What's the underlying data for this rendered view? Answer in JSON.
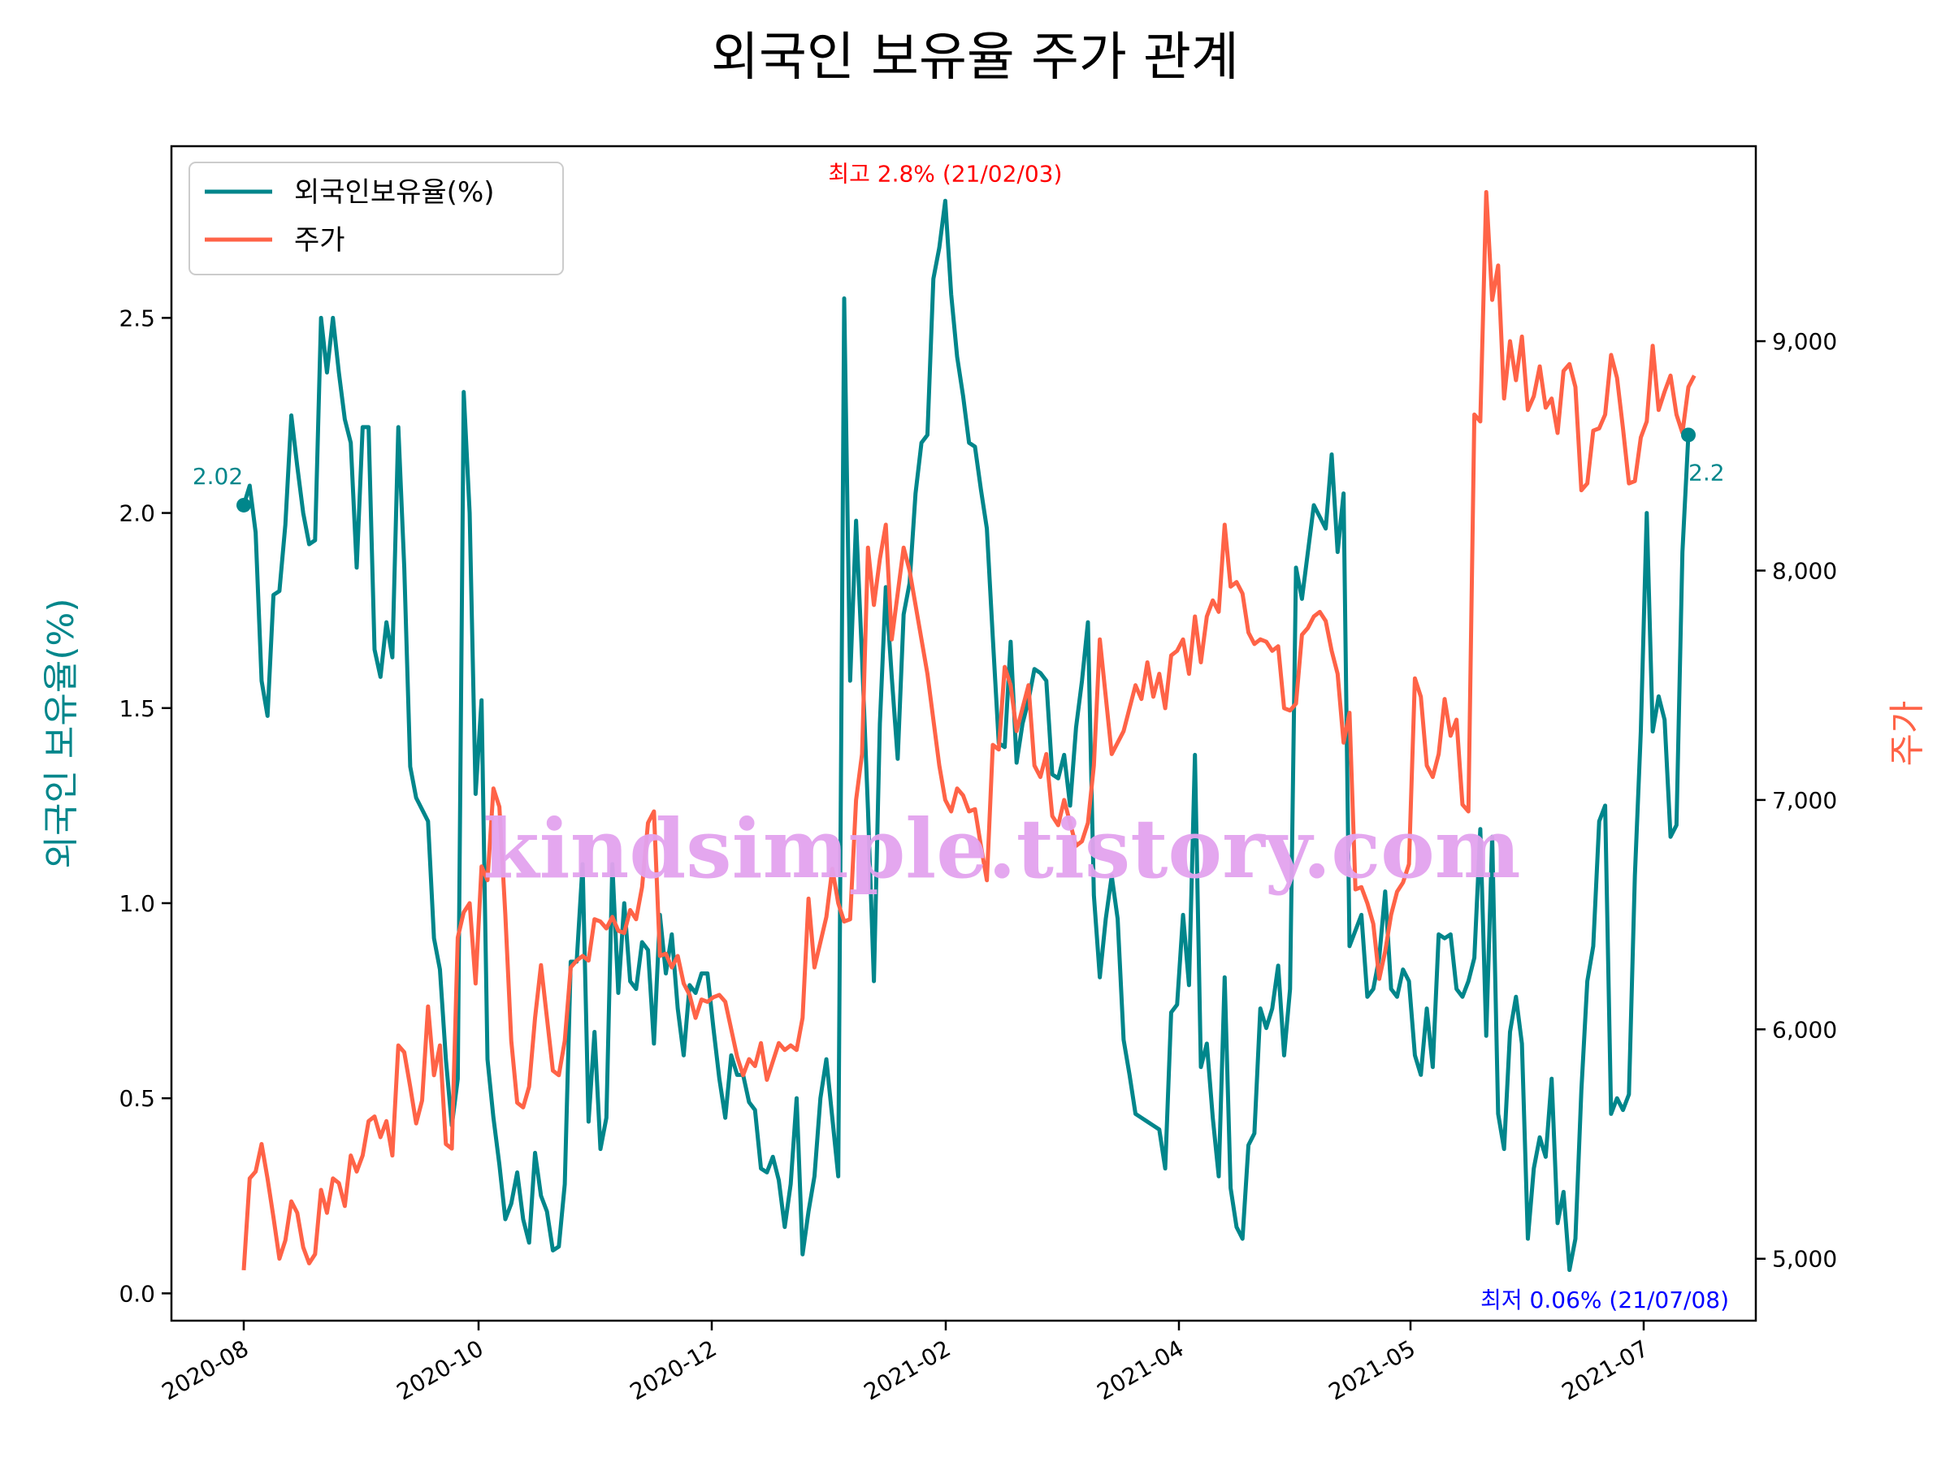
{
  "chart_data": {
    "type": "line",
    "title": "외국인 보유율 주가 관계",
    "ylabel_left": "외국인 보유율(%)",
    "ylabel_right": "주가",
    "watermark": "kindsimple.tistory.com",
    "colors": {
      "foreign": "#00868b",
      "price": "#ff6347",
      "max": "#ff0000",
      "min": "#0000ff"
    },
    "x_ticks": [
      "2020-08",
      "2020-10",
      "2020-12",
      "2021-02",
      "2021-04",
      "2021-05",
      "2021-07"
    ],
    "y_left_ticks": [
      "0.0",
      "0.5",
      "1.0",
      "1.5",
      "2.0",
      "2.5"
    ],
    "y_right_ticks": [
      "5,000",
      "6,000",
      "7,000",
      "8,000",
      "9,000"
    ],
    "y_left_lim": [
      -0.07,
      2.94
    ],
    "y_right_lim": [
      4730,
      9850
    ],
    "legend": {
      "position": "upper-left",
      "entries": [
        "외국인보유율(%)",
        "주가"
      ]
    },
    "annotations": {
      "max_label": "최고 2.8% (21/02/03)",
      "min_label": "최저 0.06% (21/07/08)",
      "start_label": "2.02",
      "end_label": "2.2"
    },
    "series": [
      {
        "name": "외국인보유율(%)",
        "axis": "left",
        "values": [
          2.02,
          2.07,
          1.95,
          1.57,
          1.48,
          1.79,
          1.8,
          1.97,
          2.25,
          2.12,
          2.0,
          1.92,
          1.93,
          2.5,
          2.36,
          2.5,
          2.36,
          2.24,
          2.18,
          1.86,
          2.22,
          2.22,
          1.65,
          1.58,
          1.72,
          1.63,
          2.22,
          1.86,
          1.35,
          1.27,
          1.24,
          1.21,
          0.91,
          0.83,
          0.6,
          0.43,
          0.55,
          2.31,
          2.0,
          1.28,
          1.52,
          0.6,
          0.45,
          0.33,
          0.19,
          0.23,
          0.31,
          0.19,
          0.13,
          0.36,
          0.25,
          0.21,
          0.11,
          0.12,
          0.28,
          0.85,
          0.85,
          1.1,
          0.44,
          0.67,
          0.37,
          0.45,
          1.1,
          0.77,
          1.0,
          0.8,
          0.78,
          0.9,
          0.88,
          0.64,
          0.97,
          0.82,
          0.92,
          0.73,
          0.61,
          0.79,
          0.77,
          0.82,
          0.82,
          0.68,
          0.55,
          0.45,
          0.61,
          0.56,
          0.56,
          0.49,
          0.47,
          0.32,
          0.31,
          0.35,
          0.29,
          0.17,
          0.28,
          0.5,
          0.1,
          0.21,
          0.3,
          0.5,
          0.6,
          0.45,
          0.3,
          2.55,
          1.57,
          1.98,
          1.63,
          1.24,
          0.8,
          1.46,
          1.81,
          1.58,
          1.37,
          1.74,
          1.82,
          2.05,
          2.18,
          2.2,
          2.6,
          2.68,
          2.8,
          2.56,
          2.4,
          2.3,
          2.18,
          2.17,
          2.06,
          1.96,
          1.68,
          1.41,
          1.4,
          1.67,
          1.36,
          1.46,
          1.52,
          1.6,
          1.59,
          1.57,
          1.33,
          1.32,
          1.38,
          1.25,
          1.45,
          1.57,
          1.72,
          1.02,
          0.81,
          0.96,
          1.07,
          0.96,
          0.65,
          0.56,
          0.46,
          0.45,
          0.44,
          0.43,
          0.42,
          0.32,
          0.72,
          0.74,
          0.97,
          0.79,
          1.38,
          0.58,
          0.64,
          0.45,
          0.3,
          0.81,
          0.27,
          0.17,
          0.14,
          0.38,
          0.41,
          0.73,
          0.68,
          0.73,
          0.84,
          0.61,
          0.78,
          1.86,
          1.78,
          1.9,
          2.02,
          1.99,
          1.96,
          2.15,
          1.9,
          2.05,
          0.89,
          0.93,
          0.97,
          0.76,
          0.78,
          0.86,
          1.03,
          0.78,
          0.76,
          0.83,
          0.8,
          0.61,
          0.56,
          0.73,
          0.58,
          0.92,
          0.91,
          0.92,
          0.78,
          0.76,
          0.8,
          0.86,
          1.19,
          0.66,
          1.17,
          0.46,
          0.37,
          0.67,
          0.76,
          0.64,
          0.14,
          0.32,
          0.4,
          0.35,
          0.55,
          0.18,
          0.26,
          0.06,
          0.14,
          0.52,
          0.8,
          0.89,
          1.21,
          1.25,
          0.46,
          0.5,
          0.47,
          0.51,
          1.07,
          1.44,
          2.0,
          1.44,
          1.53,
          1.47,
          1.17,
          1.2,
          1.9,
          2.2
        ]
      },
      {
        "name": "주가",
        "axis": "right",
        "values": [
          4950,
          5350,
          5380,
          5500,
          5350,
          5180,
          5000,
          5080,
          5250,
          5200,
          5050,
          4980,
          5020,
          5300,
          5200,
          5350,
          5330,
          5230,
          5450,
          5380,
          5450,
          5600,
          5620,
          5530,
          5600,
          5450,
          5930,
          5900,
          5750,
          5590,
          5690,
          6100,
          5800,
          5930,
          5500,
          5480,
          6400,
          6510,
          6550,
          6200,
          6710,
          6650,
          7050,
          6970,
          6500,
          5950,
          5680,
          5660,
          5750,
          6050,
          6280,
          6050,
          5820,
          5800,
          5950,
          6270,
          6300,
          6320,
          6300,
          6480,
          6470,
          6440,
          6490,
          6430,
          6420,
          6520,
          6480,
          6620,
          6900,
          6950,
          6320,
          6330,
          6270,
          6320,
          6200,
          6150,
          6050,
          6130,
          6120,
          6140,
          6150,
          6120,
          6000,
          5880,
          5800,
          5870,
          5840,
          5940,
          5780,
          5860,
          5940,
          5910,
          5930,
          5910,
          6050,
          6570,
          6270,
          6380,
          6490,
          6700,
          6550,
          6470,
          6480,
          7000,
          7200,
          8100,
          7850,
          8050,
          8200,
          7700,
          7900,
          8100,
          8000,
          7850,
          7700,
          7550,
          7350,
          7150,
          7000,
          6950,
          7050,
          7020,
          6950,
          6960,
          6800,
          6650,
          7240,
          7220,
          7580,
          7500,
          7300,
          7400,
          7500,
          7150,
          7100,
          7200,
          6930,
          6890,
          7000,
          6900,
          6800,
          6820,
          6900,
          7150,
          7700,
          7450,
          7200,
          7250,
          7300,
          7400,
          7500,
          7440,
          7600,
          7450,
          7550,
          7400,
          7630,
          7650,
          7700,
          7550,
          7800,
          7600,
          7800,
          7870,
          7820,
          8200,
          7930,
          7950,
          7900,
          7730,
          7680,
          7700,
          7690,
          7650,
          7670,
          7400,
          7390,
          7420,
          7720,
          7750,
          7800,
          7820,
          7780,
          7650,
          7550,
          7250,
          7380,
          6610,
          6620,
          6550,
          6460,
          6220,
          6340,
          6500,
          6600,
          6640,
          6720,
          7530,
          7450,
          7150,
          7100,
          7200,
          7440,
          7280,
          7350,
          6980,
          6950,
          8680,
          8650,
          9650,
          9180,
          9330,
          8750,
          9000,
          8830,
          9020,
          8700,
          8760,
          8890,
          8710,
          8750,
          8600,
          8870,
          8900,
          8800,
          8350,
          8380,
          8610,
          8620,
          8680,
          8940,
          8840,
          8620,
          8380,
          8390,
          8580,
          8650,
          8980,
          8700,
          8780,
          8850,
          8680,
          8600,
          8800,
          8850
        ]
      }
    ]
  }
}
